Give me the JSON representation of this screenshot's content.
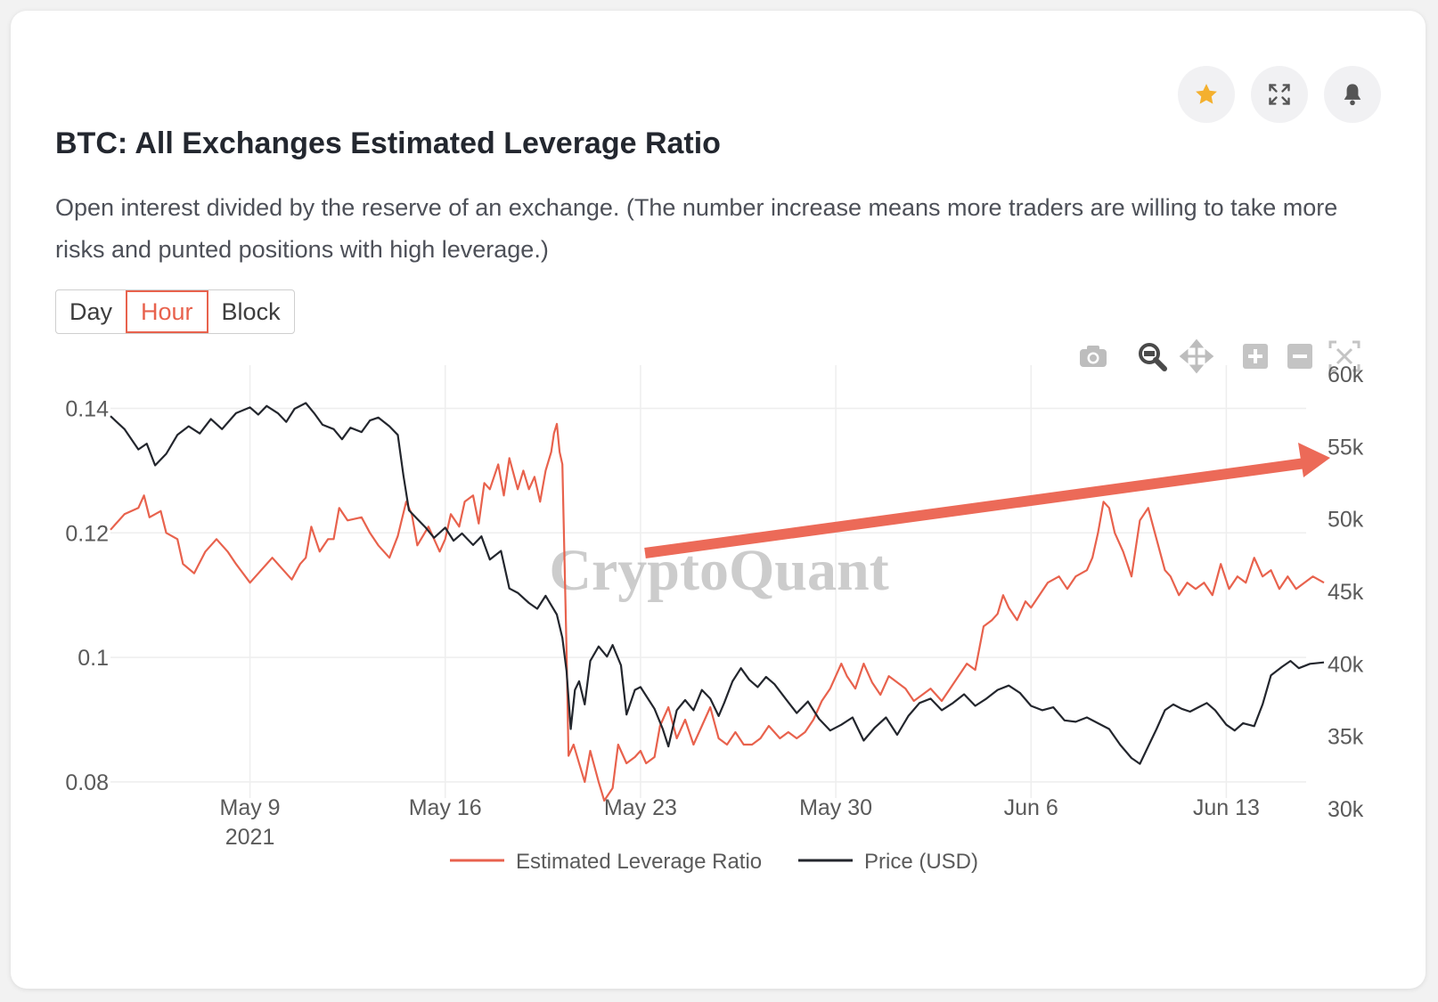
{
  "header": {
    "title": "BTC: All Exchanges Estimated Leverage Ratio",
    "description": "Open interest divided by the reserve of an exchange. (The number increase means more traders are willing to take more risks and punted positions with high leverage.)"
  },
  "actions": {
    "favorite": "star-icon",
    "fullscreen": "expand-icon",
    "alerts": "bell-icon"
  },
  "interval_tabs": {
    "items": [
      "Day",
      "Hour",
      "Block"
    ],
    "selected": "Hour"
  },
  "modebar": [
    "camera-icon",
    "zoom-icon",
    "pan-icon",
    "zoom-in-icon",
    "zoom-out-icon",
    "autoscale-icon"
  ],
  "colors": {
    "leverage": "#e8624d",
    "price": "#23262d",
    "accent": "#e8624d",
    "star": "#f4b02e",
    "arrow": "#ec6a58",
    "grid": "#eeeeee"
  },
  "watermark": "CryptoQuant",
  "chart_data": {
    "type": "line",
    "title": "BTC: All Exchanges Estimated Leverage Ratio",
    "x_range": [
      0,
      43.5
    ],
    "x_ticks": [
      {
        "x": 5,
        "label": "May 9",
        "sub": "2021"
      },
      {
        "x": 12,
        "label": "May 16"
      },
      {
        "x": 19,
        "label": "May 23"
      },
      {
        "x": 26,
        "label": "May 30"
      },
      {
        "x": 33,
        "label": "Jun 6"
      },
      {
        "x": 40,
        "label": "Jun 13"
      }
    ],
    "x_unit": "days since May 4, 2021",
    "y_left": {
      "range": [
        0.0757,
        0.1455
      ],
      "ticks": [
        0.08,
        0.1,
        0.12,
        0.14
      ],
      "tick_labels": [
        "0.08",
        "0.1",
        "0.12",
        "0.14"
      ]
    },
    "y_right": {
      "range": [
        30000,
        60000
      ],
      "ticks": [
        30000,
        35000,
        40000,
        45000,
        50000,
        55000,
        60000
      ],
      "tick_labels": [
        "30k",
        "35k",
        "40k",
        "45k",
        "50k",
        "55k",
        "60k"
      ]
    },
    "series": [
      {
        "name": "Estimated Leverage Ratio",
        "axis": "left",
        "points": [
          [
            0,
            0.1205
          ],
          [
            0.5,
            0.123
          ],
          [
            1,
            0.124
          ],
          [
            1.2,
            0.126
          ],
          [
            1.4,
            0.1225
          ],
          [
            1.8,
            0.1235
          ],
          [
            2,
            0.12
          ],
          [
            2.4,
            0.119
          ],
          [
            2.6,
            0.115
          ],
          [
            3,
            0.1135
          ],
          [
            3.4,
            0.117
          ],
          [
            3.8,
            0.119
          ],
          [
            4.2,
            0.117
          ],
          [
            4.5,
            0.115
          ],
          [
            5,
            0.112
          ],
          [
            5.4,
            0.114
          ],
          [
            5.8,
            0.116
          ],
          [
            6.2,
            0.114
          ],
          [
            6.5,
            0.1125
          ],
          [
            6.8,
            0.115
          ],
          [
            7,
            0.116
          ],
          [
            7.2,
            0.121
          ],
          [
            7.5,
            0.117
          ],
          [
            7.8,
            0.119
          ],
          [
            8,
            0.119
          ],
          [
            8.2,
            0.124
          ],
          [
            8.5,
            0.122
          ],
          [
            9,
            0.1225
          ],
          [
            9.3,
            0.12
          ],
          [
            9.6,
            0.118
          ],
          [
            10,
            0.116
          ],
          [
            10.3,
            0.1195
          ],
          [
            10.6,
            0.125
          ],
          [
            10.8,
            0.123
          ],
          [
            11,
            0.118
          ],
          [
            11.4,
            0.121
          ],
          [
            11.8,
            0.117
          ],
          [
            12,
            0.119
          ],
          [
            12.2,
            0.123
          ],
          [
            12.5,
            0.121
          ],
          [
            12.7,
            0.125
          ],
          [
            13,
            0.126
          ],
          [
            13.2,
            0.1215
          ],
          [
            13.4,
            0.128
          ],
          [
            13.6,
            0.127
          ],
          [
            13.9,
            0.131
          ],
          [
            14.1,
            0.126
          ],
          [
            14.3,
            0.132
          ],
          [
            14.6,
            0.127
          ],
          [
            14.8,
            0.13
          ],
          [
            15,
            0.127
          ],
          [
            15.2,
            0.129
          ],
          [
            15.4,
            0.125
          ],
          [
            15.6,
            0.13
          ],
          [
            15.8,
            0.133
          ],
          [
            15.9,
            0.136
          ],
          [
            16,
            0.1375
          ],
          [
            16.1,
            0.133
          ],
          [
            16.2,
            0.131
          ],
          [
            16.35,
            0.101
          ],
          [
            16.42,
            0.0842
          ],
          [
            16.6,
            0.086
          ],
          [
            16.8,
            0.083
          ],
          [
            17,
            0.08
          ],
          [
            17.2,
            0.085
          ],
          [
            17.5,
            0.08
          ],
          [
            17.7,
            0.077
          ],
          [
            18,
            0.079
          ],
          [
            18.2,
            0.086
          ],
          [
            18.5,
            0.083
          ],
          [
            18.8,
            0.084
          ],
          [
            19,
            0.085
          ],
          [
            19.2,
            0.083
          ],
          [
            19.5,
            0.084
          ],
          [
            19.7,
            0.089
          ],
          [
            20,
            0.092
          ],
          [
            20.3,
            0.087
          ],
          [
            20.6,
            0.09
          ],
          [
            20.9,
            0.086
          ],
          [
            21.2,
            0.089
          ],
          [
            21.5,
            0.092
          ],
          [
            21.8,
            0.087
          ],
          [
            22.1,
            0.086
          ],
          [
            22.4,
            0.088
          ],
          [
            22.7,
            0.086
          ],
          [
            23,
            0.086
          ],
          [
            23.3,
            0.087
          ],
          [
            23.6,
            0.089
          ],
          [
            24,
            0.087
          ],
          [
            24.3,
            0.088
          ],
          [
            24.6,
            0.087
          ],
          [
            24.9,
            0.088
          ],
          [
            25.2,
            0.09
          ],
          [
            25.5,
            0.093
          ],
          [
            25.8,
            0.095
          ],
          [
            26.2,
            0.099
          ],
          [
            26.4,
            0.097
          ],
          [
            26.7,
            0.095
          ],
          [
            27,
            0.099
          ],
          [
            27.3,
            0.096
          ],
          [
            27.6,
            0.094
          ],
          [
            27.9,
            0.097
          ],
          [
            28.2,
            0.096
          ],
          [
            28.5,
            0.095
          ],
          [
            28.8,
            0.093
          ],
          [
            29.1,
            0.094
          ],
          [
            29.4,
            0.095
          ],
          [
            29.8,
            0.093
          ],
          [
            30.1,
            0.095
          ],
          [
            30.4,
            0.097
          ],
          [
            30.7,
            0.099
          ],
          [
            31,
            0.098
          ],
          [
            31.3,
            0.105
          ],
          [
            31.6,
            0.106
          ],
          [
            31.8,
            0.107
          ],
          [
            32,
            0.11
          ],
          [
            32.2,
            0.108
          ],
          [
            32.5,
            0.106
          ],
          [
            32.8,
            0.109
          ],
          [
            33,
            0.108
          ],
          [
            33.3,
            0.11
          ],
          [
            33.6,
            0.112
          ],
          [
            34,
            0.113
          ],
          [
            34.3,
            0.111
          ],
          [
            34.6,
            0.113
          ],
          [
            35,
            0.114
          ],
          [
            35.2,
            0.116
          ],
          [
            35.4,
            0.12
          ],
          [
            35.6,
            0.125
          ],
          [
            35.8,
            0.124
          ],
          [
            36,
            0.12
          ],
          [
            36.3,
            0.117
          ],
          [
            36.6,
            0.113
          ],
          [
            36.9,
            0.122
          ],
          [
            37.2,
            0.124
          ],
          [
            37.5,
            0.119
          ],
          [
            37.8,
            0.114
          ],
          [
            38,
            0.113
          ],
          [
            38.3,
            0.11
          ],
          [
            38.6,
            0.112
          ],
          [
            38.9,
            0.111
          ],
          [
            39.2,
            0.112
          ],
          [
            39.5,
            0.11
          ],
          [
            39.8,
            0.115
          ],
          [
            40.1,
            0.111
          ],
          [
            40.4,
            0.113
          ],
          [
            40.7,
            0.112
          ],
          [
            41,
            0.116
          ],
          [
            41.3,
            0.113
          ],
          [
            41.6,
            0.114
          ],
          [
            41.9,
            0.111
          ],
          [
            42.2,
            0.113
          ],
          [
            42.5,
            0.111
          ],
          [
            42.8,
            0.112
          ],
          [
            43.1,
            0.113
          ],
          [
            43.5,
            0.112
          ]
        ]
      },
      {
        "name": "Price (USD)",
        "axis": "right",
        "points": [
          [
            0,
            57100
          ],
          [
            0.5,
            56200
          ],
          [
            1,
            54800
          ],
          [
            1.3,
            55200
          ],
          [
            1.6,
            53700
          ],
          [
            2,
            54500
          ],
          [
            2.4,
            55800
          ],
          [
            2.8,
            56400
          ],
          [
            3.2,
            55900
          ],
          [
            3.6,
            56900
          ],
          [
            4,
            56200
          ],
          [
            4.5,
            57300
          ],
          [
            5,
            57700
          ],
          [
            5.3,
            57200
          ],
          [
            5.6,
            57800
          ],
          [
            6,
            57300
          ],
          [
            6.3,
            56700
          ],
          [
            6.6,
            57600
          ],
          [
            7,
            58000
          ],
          [
            7.3,
            57300
          ],
          [
            7.6,
            56500
          ],
          [
            8,
            56200
          ],
          [
            8.3,
            55500
          ],
          [
            8.6,
            56300
          ],
          [
            9,
            56000
          ],
          [
            9.3,
            56800
          ],
          [
            9.6,
            57000
          ],
          [
            10,
            56400
          ],
          [
            10.3,
            55800
          ],
          [
            10.5,
            53000
          ],
          [
            10.7,
            50600
          ],
          [
            11,
            50000
          ],
          [
            11.3,
            49400
          ],
          [
            11.6,
            48700
          ],
          [
            12,
            49400
          ],
          [
            12.3,
            48500
          ],
          [
            12.6,
            49000
          ],
          [
            13,
            48200
          ],
          [
            13.3,
            48800
          ],
          [
            13.6,
            47200
          ],
          [
            14,
            47800
          ],
          [
            14.3,
            45200
          ],
          [
            14.6,
            44900
          ],
          [
            15,
            44200
          ],
          [
            15.3,
            43800
          ],
          [
            15.6,
            44700
          ],
          [
            16,
            43400
          ],
          [
            16.2,
            41800
          ],
          [
            16.35,
            39500
          ],
          [
            16.5,
            35500
          ],
          [
            16.65,
            38200
          ],
          [
            16.8,
            38800
          ],
          [
            17,
            37200
          ],
          [
            17.2,
            40200
          ],
          [
            17.5,
            41200
          ],
          [
            17.8,
            40500
          ],
          [
            18,
            41300
          ],
          [
            18.3,
            39900
          ],
          [
            18.5,
            36500
          ],
          [
            18.8,
            38200
          ],
          [
            19,
            38400
          ],
          [
            19.3,
            37500
          ],
          [
            19.5,
            36900
          ],
          [
            19.8,
            35500
          ],
          [
            20,
            34300
          ],
          [
            20.3,
            36800
          ],
          [
            20.6,
            37500
          ],
          [
            20.9,
            36800
          ],
          [
            21.2,
            38200
          ],
          [
            21.5,
            37600
          ],
          [
            21.8,
            36400
          ],
          [
            22,
            37300
          ],
          [
            22.3,
            38800
          ],
          [
            22.6,
            39700
          ],
          [
            22.9,
            38900
          ],
          [
            23.2,
            38400
          ],
          [
            23.5,
            39100
          ],
          [
            23.8,
            38600
          ],
          [
            24.2,
            37600
          ],
          [
            24.6,
            36600
          ],
          [
            25,
            37400
          ],
          [
            25.4,
            36200
          ],
          [
            25.8,
            35400
          ],
          [
            26.2,
            35800
          ],
          [
            26.6,
            36300
          ],
          [
            27,
            34700
          ],
          [
            27.4,
            35600
          ],
          [
            27.8,
            36300
          ],
          [
            28.2,
            35100
          ],
          [
            28.6,
            36400
          ],
          [
            29,
            37300
          ],
          [
            29.4,
            37600
          ],
          [
            29.8,
            36800
          ],
          [
            30.2,
            37300
          ],
          [
            30.6,
            37900
          ],
          [
            31,
            37100
          ],
          [
            31.4,
            37600
          ],
          [
            31.8,
            38200
          ],
          [
            32.2,
            38500
          ],
          [
            32.6,
            38000
          ],
          [
            33,
            37100
          ],
          [
            33.4,
            36800
          ],
          [
            33.8,
            37000
          ],
          [
            34.2,
            36100
          ],
          [
            34.6,
            36000
          ],
          [
            35,
            36300
          ],
          [
            35.4,
            35900
          ],
          [
            35.8,
            35500
          ],
          [
            36.2,
            34400
          ],
          [
            36.6,
            33500
          ],
          [
            36.9,
            33100
          ],
          [
            37.2,
            34300
          ],
          [
            37.5,
            35500
          ],
          [
            37.8,
            36800
          ],
          [
            38.1,
            37200
          ],
          [
            38.4,
            36900
          ],
          [
            38.7,
            36700
          ],
          [
            39,
            37000
          ],
          [
            39.3,
            37300
          ],
          [
            39.6,
            36800
          ],
          [
            40,
            35800
          ],
          [
            40.3,
            35400
          ],
          [
            40.6,
            35900
          ],
          [
            41,
            35700
          ],
          [
            41.3,
            37200
          ],
          [
            41.6,
            39200
          ],
          [
            42,
            39800
          ],
          [
            42.3,
            40200
          ],
          [
            42.6,
            39700
          ],
          [
            43,
            40000
          ],
          [
            43.5,
            40100
          ]
        ]
      }
    ],
    "legend": [
      "Estimated Leverage Ratio",
      "Price (USD)"
    ],
    "legend_position": "bottom-center",
    "grid": true
  }
}
